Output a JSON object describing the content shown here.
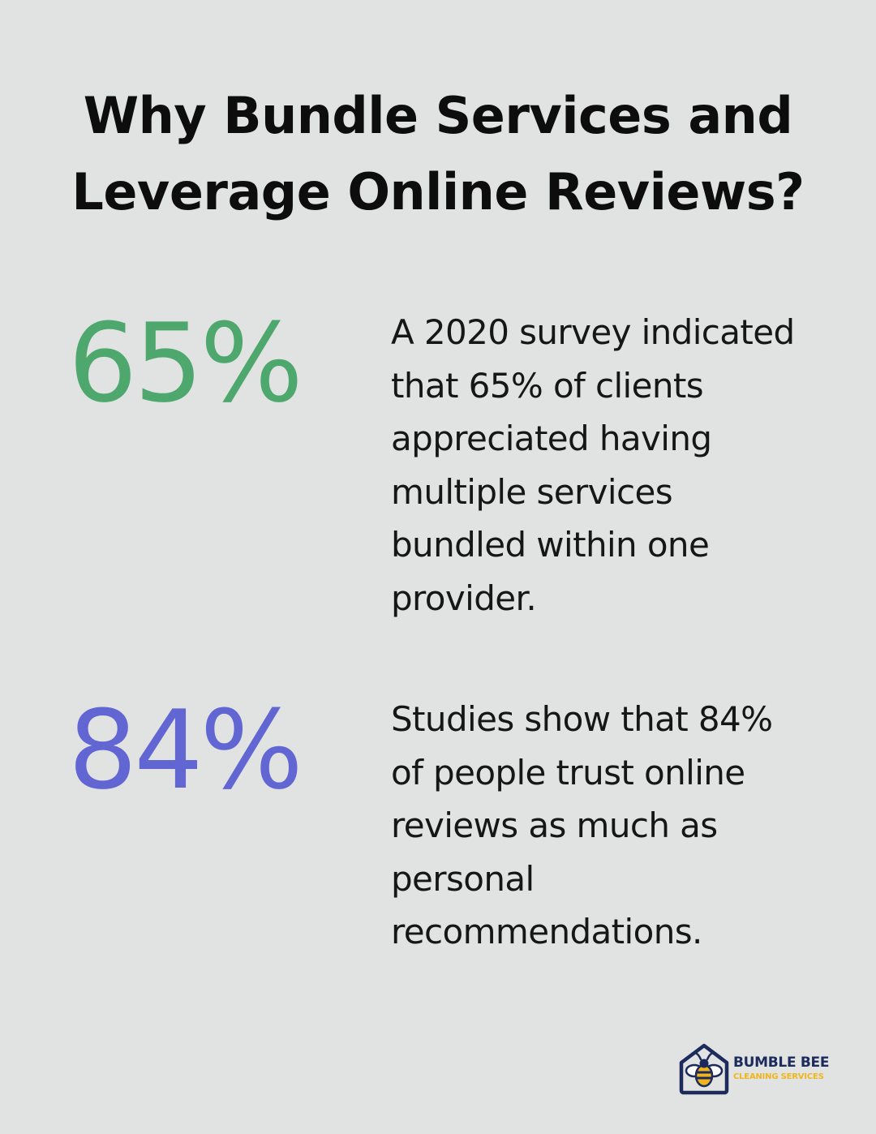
{
  "title": {
    "line1": "Why Bundle Services and",
    "line2": "Leverage Online Reviews?"
  },
  "stats": [
    {
      "value": "65%",
      "lines": [
        "A 2020 survey indicated",
        "that 65% of clients",
        "appreciated having",
        "multiple services",
        "bundled within one",
        "provider."
      ],
      "color": "#4ea86e"
    },
    {
      "value": "84%",
      "lines": [
        "Studies show that 84%",
        "of people trust online",
        "reviews as much as",
        "personal",
        "recommendations."
      ],
      "color": "#6266d3"
    }
  ],
  "logo": {
    "name": "BUMBLE BEE",
    "tagline": "CLEANING SERVICES",
    "icon": "bee-house-icon",
    "colors": {
      "primary": "#1d2a5c",
      "accent": "#f1b51c"
    }
  },
  "colors": {
    "background": "#e1e3e2",
    "text": "#111111"
  }
}
